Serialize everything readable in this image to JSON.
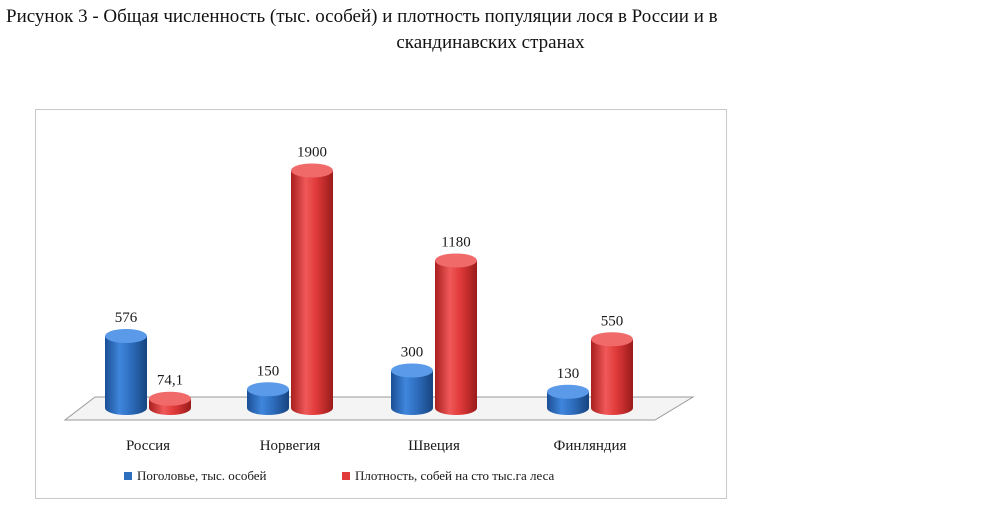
{
  "caption": {
    "line1": "Рисунок 3 - Общая численность (тыс. особей) и плотность популяции лося в России и в",
    "line2": "скандинавских странах"
  },
  "chart_data": {
    "type": "bar",
    "style": "3d-cylinder",
    "categories": [
      "Россия",
      "Норвегия",
      "Швеция",
      "Финляндия"
    ],
    "series": [
      {
        "name": "Поголовье, тыс. особей",
        "values": [
          576,
          150,
          300,
          130
        ],
        "labels": [
          "576",
          "150",
          "300",
          "130"
        ],
        "color": "#2f6fc0"
      },
      {
        "name": "Плотность, собей на сто тыс.га леса",
        "values": [
          74.1,
          1900,
          1180,
          550
        ],
        "labels": [
          "74,1",
          "1900",
          "1180",
          "550"
        ],
        "color": "#e03a3a"
      }
    ],
    "ylim": [
      0,
      2000
    ],
    "grid": false,
    "legend_position": "bottom"
  }
}
